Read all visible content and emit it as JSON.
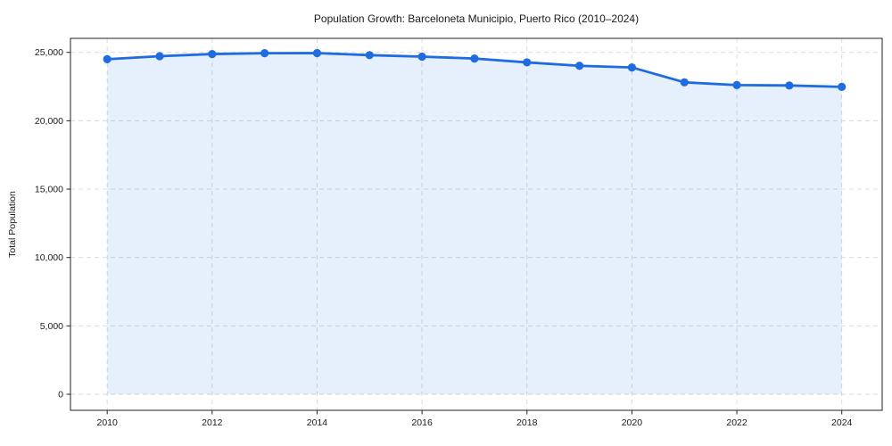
{
  "page": {
    "background": "#ffffff"
  },
  "chart_data": {
    "type": "area",
    "title": "Population Growth: Barceloneta Municipio, Puerto Rico (2010–2024)",
    "xlabel": "",
    "ylabel": "Total Population",
    "x": [
      2010,
      2011,
      2012,
      2013,
      2014,
      2015,
      2016,
      2017,
      2018,
      2019,
      2020,
      2021,
      2022,
      2023,
      2024
    ],
    "series": [
      {
        "name": "Total Population",
        "values": [
          24500,
          24720,
          24880,
          24940,
          24950,
          24800,
          24690,
          24550,
          24270,
          24020,
          23900,
          22810,
          22610,
          22580,
          22480
        ]
      }
    ],
    "xticks": [
      2010,
      2012,
      2014,
      2016,
      2018,
      2020,
      2022,
      2024
    ],
    "yticks": [
      0,
      5000,
      10000,
      15000,
      20000,
      25000
    ],
    "xlim": [
      2009.3,
      2024.77
    ],
    "ylim": [
      -1174,
      26026
    ],
    "grid": true,
    "grid_style": "dashed",
    "legend_position": "none",
    "marker": "circle",
    "colors": {
      "line": "#1f6be0",
      "marker": "#1f6be0",
      "fill": "rgba(31,107,224,0.11)",
      "grid": "#d8d8d8",
      "spine": "#222222",
      "text": "#1a1a1a"
    }
  }
}
